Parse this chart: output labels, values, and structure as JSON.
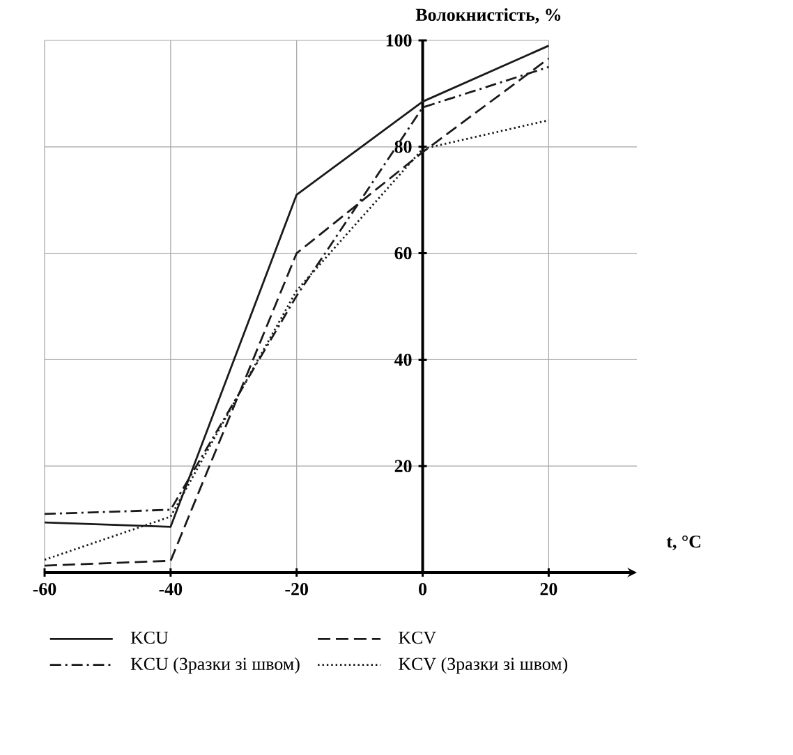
{
  "chart_data": {
    "type": "line",
    "xlabel": "t, °C",
    "ylabel": "Волокнистість, %",
    "x": [
      -60,
      -40,
      -20,
      0,
      20
    ],
    "series": [
      {
        "name": "KCU",
        "color": "#1a1a1a",
        "line_style": "solid",
        "values": [
          9.4,
          8.6,
          71,
          88.5,
          99
        ]
      },
      {
        "name": "KCV",
        "color": "#1a1a1a",
        "line_style": "dashed",
        "values": [
          1.3,
          2.2,
          60,
          79,
          96.6
        ]
      },
      {
        "name": "KCU (Зразки зі швом)",
        "color": "#1a1a1a",
        "line_style": "dashdot",
        "values": [
          11,
          11.8,
          52,
          87.4,
          95
        ]
      },
      {
        "name": "KCV (Зразки зі швом)",
        "color": "#1a1a1a",
        "line_style": "dotted",
        "values": [
          2.4,
          10.5,
          53,
          79.6,
          85
        ]
      }
    ],
    "xlim": [
      -60,
      34
    ],
    "ylim": [
      0,
      100
    ],
    "xticks": [
      -60,
      -40,
      -20,
      0,
      20
    ],
    "yticks": [
      {
        "value": 0,
        "label": null
      },
      20,
      40,
      60,
      80,
      100
    ],
    "grid": true,
    "legend": "bottom",
    "marker": "none"
  }
}
